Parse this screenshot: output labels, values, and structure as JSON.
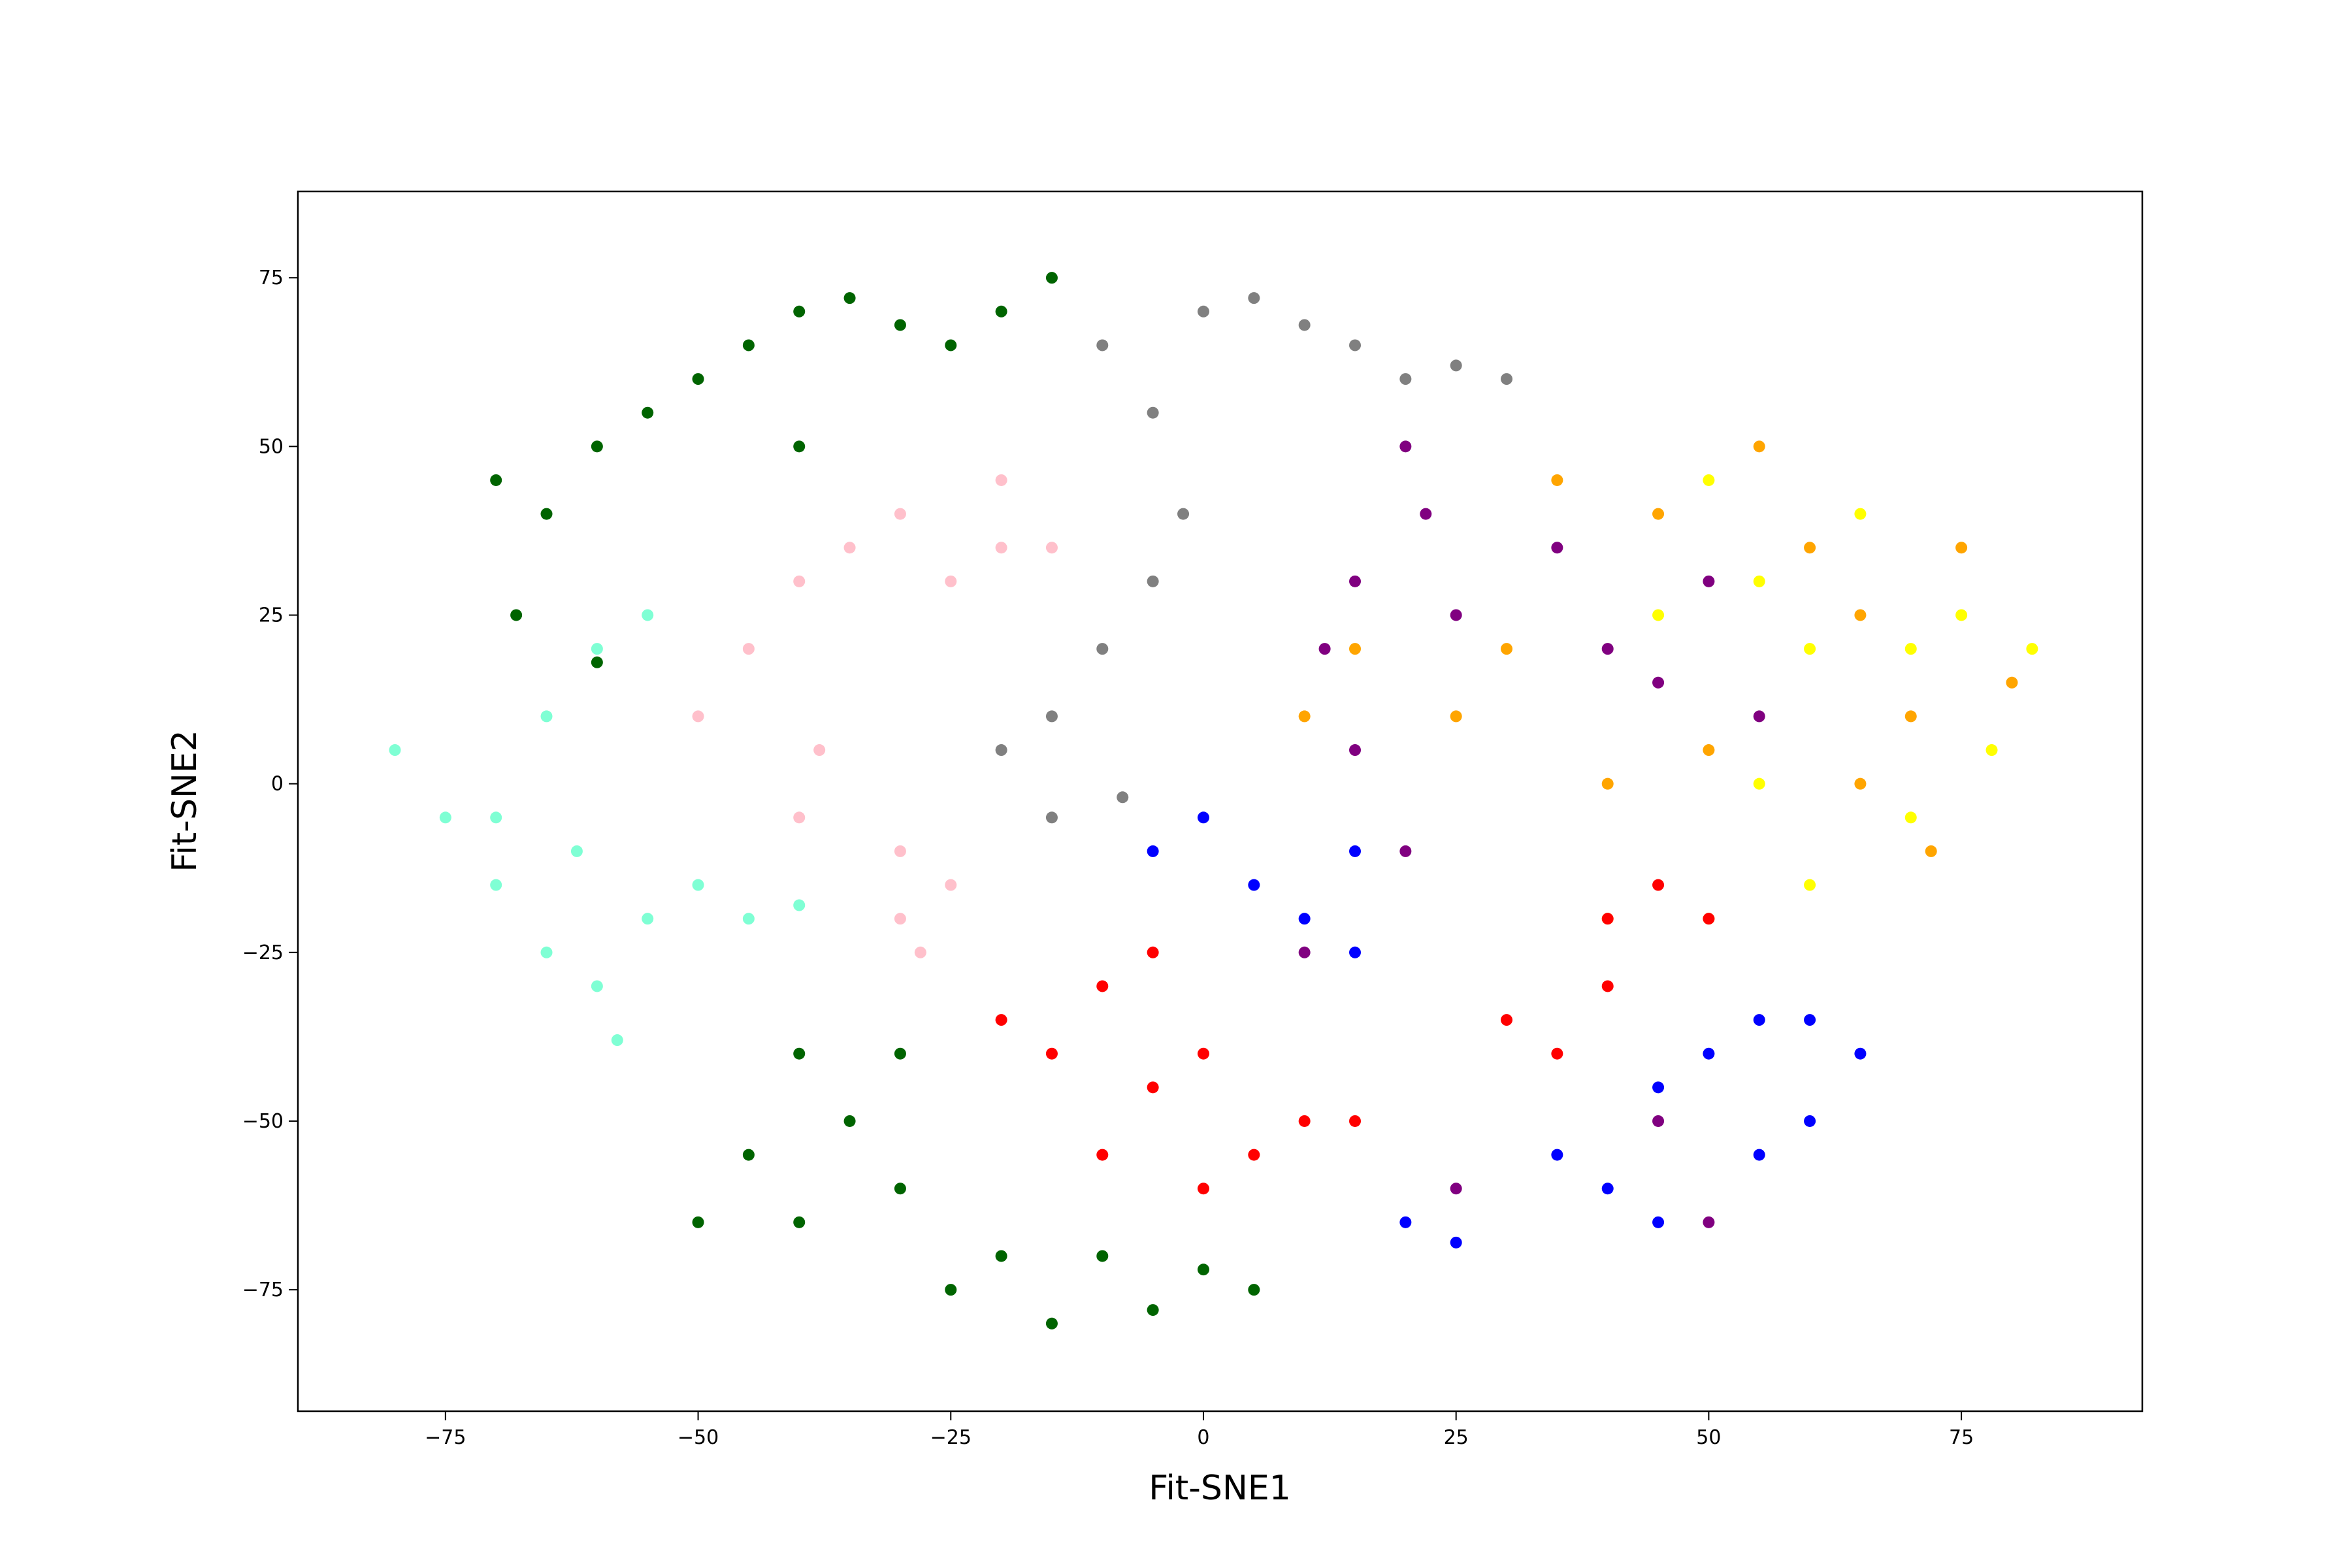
{
  "chart_data": {
    "type": "scatter",
    "x_label": "Fit-SNE1",
    "y_label": "Fit-SNE2",
    "xlim": [
      -89.6,
      92.9
    ],
    "ylim": [
      -93.0,
      87.8
    ],
    "xticks": [
      {
        "value": -75,
        "label": "−75"
      },
      {
        "value": -50,
        "label": "−50"
      },
      {
        "value": -25,
        "label": "−25"
      },
      0,
      25,
      50,
      75
    ],
    "yticks": [
      {
        "value": -75,
        "label": "−75"
      },
      {
        "value": -50,
        "label": "−50"
      },
      {
        "value": -25,
        "label": "−25"
      },
      0,
      25,
      50,
      75
    ],
    "grid": false,
    "series": [
      {
        "color": "#006400",
        "x": [
          -70,
          -65,
          -60,
          -55,
          -50,
          -45,
          -40,
          -35,
          -30,
          -25,
          -20,
          -15,
          -40,
          -68,
          -60,
          -40,
          -35,
          -45,
          -50,
          -40,
          -30,
          -25,
          -20,
          -15,
          -10,
          -5,
          0,
          5,
          -30
        ],
        "y": [
          45,
          40,
          50,
          55,
          60,
          65,
          70,
          72,
          68,
          65,
          70,
          75,
          50,
          25,
          18,
          -40,
          -50,
          -55,
          -65,
          -65,
          -60,
          -75,
          -70,
          -80,
          -70,
          -78,
          -72,
          -75,
          -40
        ]
      },
      {
        "color": "#7fffd4",
        "x": [
          -80,
          -75,
          -70,
          -65,
          -60,
          -58,
          -55,
          -50,
          -45,
          -40,
          -65,
          -60,
          -55,
          -70,
          -62
        ],
        "y": [
          5,
          -5,
          -15,
          -25,
          -30,
          -38,
          -20,
          -15,
          -20,
          -18,
          10,
          20,
          25,
          -5,
          -10
        ]
      },
      {
        "color": "#ffc0cb",
        "x": [
          -50,
          -45,
          -40,
          -35,
          -30,
          -25,
          -20,
          -15,
          -38,
          -30,
          -25,
          -30,
          -28,
          -40,
          -20
        ],
        "y": [
          10,
          20,
          30,
          35,
          40,
          30,
          35,
          35,
          5,
          -10,
          -15,
          -20,
          -25,
          -5,
          45
        ]
      },
      {
        "color": "#808080",
        "x": [
          -10,
          -5,
          0,
          5,
          10,
          15,
          20,
          25,
          30,
          -2,
          -5,
          -10,
          -15,
          -20,
          -15,
          -8
        ],
        "y": [
          65,
          55,
          70,
          72,
          68,
          65,
          60,
          62,
          60,
          40,
          30,
          20,
          10,
          5,
          -5,
          -2
        ]
      },
      {
        "color": "#800080",
        "x": [
          20,
          22,
          15,
          12,
          15,
          25,
          35,
          40,
          45,
          50,
          55,
          20,
          10,
          25,
          45,
          50
        ],
        "y": [
          50,
          40,
          30,
          20,
          5,
          25,
          35,
          20,
          15,
          30,
          10,
          -10,
          -25,
          -60,
          -50,
          -65
        ]
      },
      {
        "color": "#ffa500",
        "x": [
          10,
          15,
          25,
          30,
          35,
          45,
          55,
          60,
          65,
          75,
          70,
          65,
          50,
          40,
          80,
          72
        ],
        "y": [
          10,
          20,
          10,
          20,
          45,
          40,
          50,
          35,
          25,
          35,
          10,
          0,
          5,
          0,
          15,
          -10
        ]
      },
      {
        "color": "#ffff00",
        "x": [
          50,
          55,
          60,
          70,
          75,
          82,
          78,
          70,
          60,
          50,
          40,
          55,
          65,
          45
        ],
        "y": [
          45,
          30,
          20,
          20,
          25,
          20,
          5,
          -5,
          -15,
          -20,
          -20,
          0,
          40,
          25
        ]
      },
      {
        "color": "#ff0000",
        "x": [
          -20,
          -15,
          -10,
          -5,
          0,
          5,
          10,
          15,
          -10,
          0,
          30,
          35,
          40,
          40,
          45,
          50,
          -5
        ],
        "y": [
          -35,
          -40,
          -30,
          -45,
          -40,
          -55,
          -50,
          -50,
          -55,
          -60,
          -35,
          -40,
          -30,
          -20,
          -15,
          -20,
          -25
        ]
      },
      {
        "color": "#0000ff",
        "x": [
          -5,
          0,
          5,
          10,
          15,
          15,
          20,
          25,
          45,
          50,
          55,
          60,
          65,
          55,
          40,
          45,
          60,
          35
        ],
        "y": [
          -10,
          -5,
          -15,
          -20,
          -25,
          -10,
          -65,
          -68,
          -45,
          -40,
          -55,
          -50,
          -40,
          -35,
          -60,
          -65,
          -35,
          -55
        ]
      }
    ]
  }
}
